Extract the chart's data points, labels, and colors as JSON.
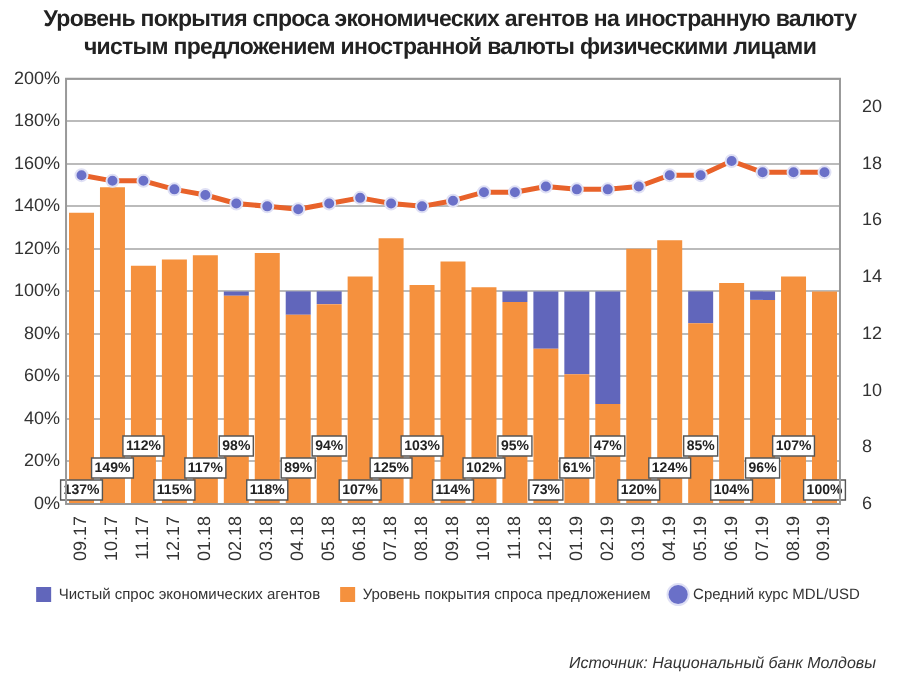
{
  "chart_data": {
    "type": "bar",
    "title": "Уровень покрытия спроса экономических агентов на иностранную валюту чистым предложением иностранной валюты физическими лицами",
    "categories": [
      "09.17",
      "10.17",
      "11.17",
      "12.17",
      "01.18",
      "02.18",
      "03.18",
      "04.18",
      "05.18",
      "06.18",
      "07.18",
      "08.18",
      "09.18",
      "10.18",
      "11.18",
      "12.18",
      "01.19",
      "02.19",
      "03.19",
      "04.19",
      "05.19",
      "06.19",
      "07.19",
      "08.19",
      "09.19"
    ],
    "stacked": true,
    "series": [
      {
        "name": "Уровень покрытия спроса предложением",
        "color": "#f5913e",
        "values": [
          137,
          149,
          112,
          115,
          117,
          98,
          118,
          89,
          94,
          107,
          125,
          103,
          114,
          102,
          95,
          73,
          61,
          47,
          120,
          124,
          85,
          104,
          96,
          107,
          100
        ],
        "value_labels": [
          "137%",
          "149%",
          "112%",
          "115%",
          "117%",
          "98%",
          "118%",
          "89%",
          "94%",
          "107%",
          "125%",
          "103%",
          "114%",
          "102%",
          "95%",
          "73%",
          "61%",
          "47%",
          "120%",
          "124%",
          "85%",
          "104%",
          "96%",
          "107%",
          "100%"
        ]
      },
      {
        "name": "Чистый спрос экономических агентов",
        "color": "#6166bb",
        "values": [
          null,
          null,
          null,
          null,
          null,
          2,
          null,
          11,
          6,
          null,
          null,
          null,
          null,
          null,
          5,
          27,
          39,
          53,
          null,
          null,
          15,
          null,
          4,
          null,
          null
        ]
      },
      {
        "name": "Средний курс MDL/USD",
        "type": "line",
        "axis": "y2",
        "color": "#e8622a",
        "values": [
          17.6,
          17.4,
          17.4,
          17.1,
          16.9,
          16.6,
          16.5,
          16.4,
          16.6,
          16.8,
          16.6,
          16.5,
          16.7,
          17.0,
          17.0,
          17.2,
          17.1,
          17.1,
          17.2,
          17.6,
          17.6,
          18.1,
          17.7,
          17.7,
          17.7
        ]
      }
    ],
    "ylim": [
      0,
      200
    ],
    "yticks": [
      {
        "value": 0,
        "label": "0%"
      },
      {
        "value": 20,
        "label": "20%"
      },
      {
        "value": 40,
        "label": "40%"
      },
      {
        "value": 60,
        "label": "60%"
      },
      {
        "value": 80,
        "label": "80%"
      },
      {
        "value": 100,
        "label": "100%"
      },
      {
        "value": 120,
        "label": "120%"
      },
      {
        "value": 140,
        "label": "140%"
      },
      {
        "value": 160,
        "label": "160%"
      },
      {
        "value": 180,
        "label": "180%"
      },
      {
        "value": 200,
        "label": "200%"
      }
    ],
    "y2lim": [
      6,
      21
    ],
    "y2ticks": [
      6,
      8,
      10,
      12,
      14,
      16,
      18,
      20
    ],
    "grid": "y",
    "legend": "bottom",
    "marker": "circle",
    "annotations": [
      "Источник: Национальный банк Молдовы"
    ]
  }
}
